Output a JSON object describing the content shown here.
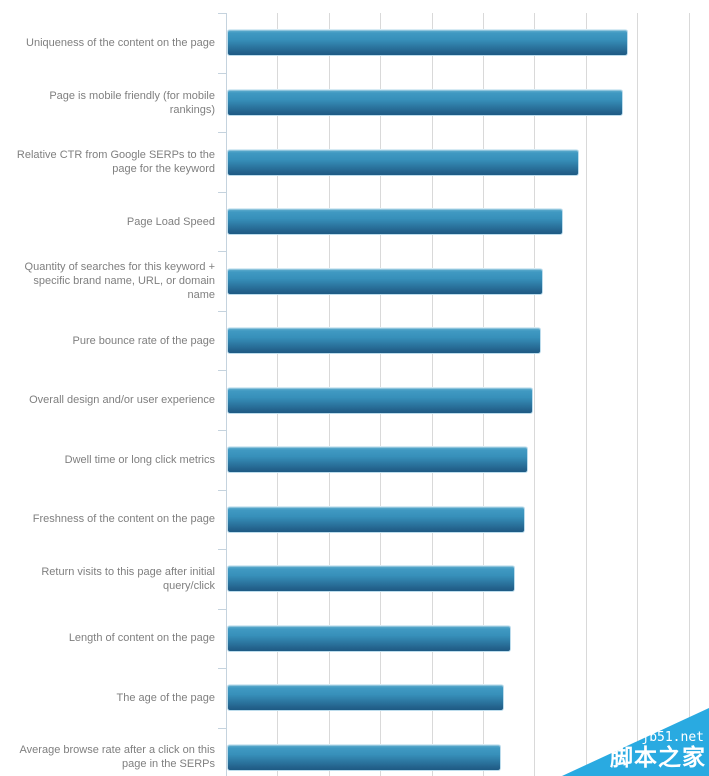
{
  "chart_data": {
    "type": "bar",
    "orientation": "horizontal",
    "title": "",
    "xlabel": "",
    "ylabel": "",
    "categories": [
      "Uniqueness of the content on the page",
      "Page is mobile friendly (for mobile rankings)",
      "Relative CTR from Google SERPs to the page for the keyword",
      "Page Load Speed",
      "Quantity of searches for this keyword + specific brand name, URL, or domain name",
      "Pure bounce rate of the page",
      "Overall design and/or user experience",
      "Dwell time or long click metrics",
      "Freshness of the content on the page",
      "Return visits to this page after initial query/click",
      "Length of content on the page",
      "The age of the page",
      "Average browse rate after a click on this page in the SERPs"
    ],
    "values": [
      7.8,
      7.7,
      6.85,
      6.54,
      6.15,
      6.1,
      5.96,
      5.85,
      5.8,
      5.6,
      5.53,
      5.39,
      5.33
    ],
    "xlim": [
      0,
      9.4
    ],
    "gridline_interval": 1,
    "gridline_count": 9,
    "grid": "vertical-only",
    "tick_value_labels_visible": false,
    "legend": "none"
  },
  "watermark": {
    "site_url": "jb51.net",
    "site_name": "脚本之家"
  },
  "colors": {
    "bar_gradient_top": "#4099c2",
    "bar_gradient_bottom": "#1d5b84",
    "bar_border": "#bcdcec",
    "axis": "#c5d3de",
    "gridline": "#d9d9d9",
    "label_text": "#7f7f7f",
    "watermark_triangle": "#29aae1",
    "watermark_text": "#ffffff",
    "background": "#ffffff"
  }
}
